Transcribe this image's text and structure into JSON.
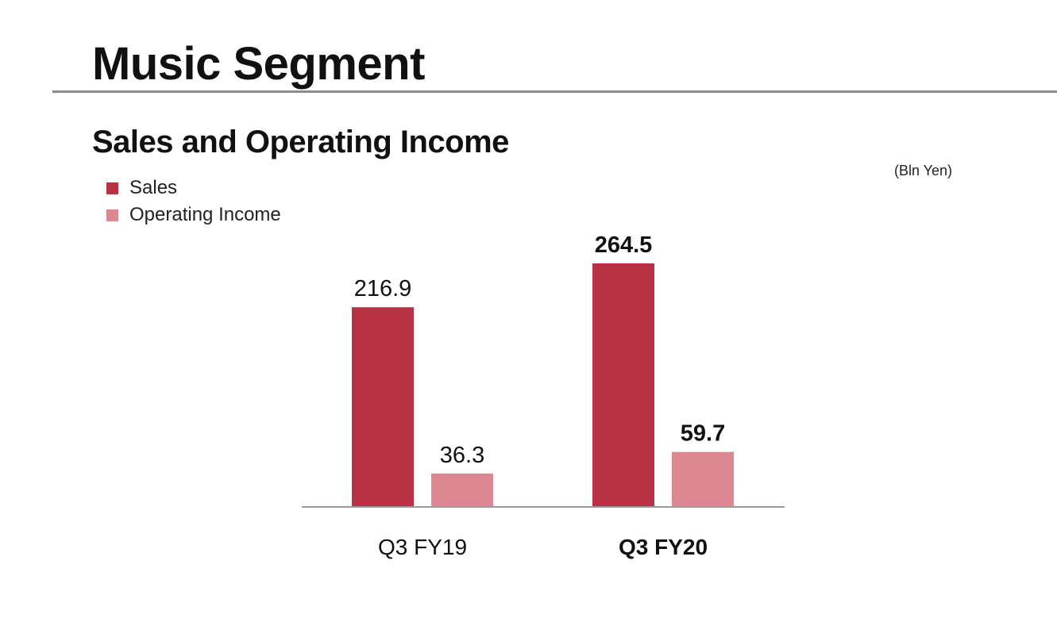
{
  "header": {
    "title": "Music Segment",
    "subtitle": "Sales and Operating Income",
    "unit": "(Bln Yen)"
  },
  "colors": {
    "sales": "#b83245",
    "operating_income": "#dc8791",
    "axis": "#9a9a9a"
  },
  "chart_data": {
    "type": "bar",
    "categories": [
      "Q3 FY19",
      "Q3 FY20"
    ],
    "series": [
      {
        "name": "Sales",
        "values": [
          216.9,
          264.5
        ],
        "labels": [
          "216.9",
          "264.5"
        ]
      },
      {
        "name": "Operating Income",
        "values": [
          36.3,
          59.7
        ],
        "labels": [
          "36.3",
          "59.7"
        ]
      }
    ],
    "title": "Sales and Operating Income",
    "xlabel": "",
    "ylabel": "",
    "unit": "(Bln Yen)",
    "ylim": [
      0,
      264.5
    ],
    "grid": false,
    "legend": "top-left"
  }
}
